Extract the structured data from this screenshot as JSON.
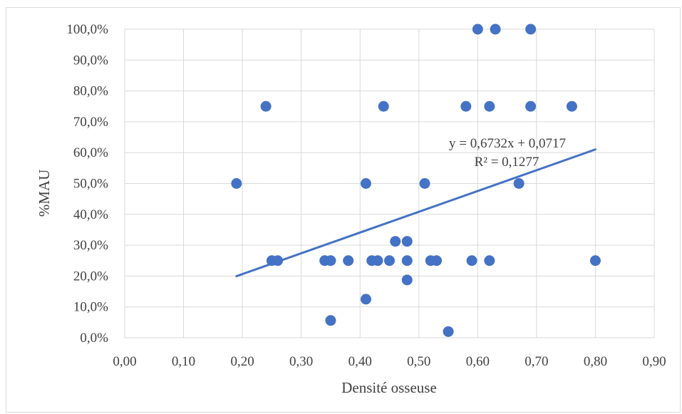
{
  "chart_data": {
    "type": "scatter",
    "title": "",
    "xlabel": "Densité osseuse",
    "ylabel": "%MAU",
    "xlim": [
      0,
      0.9
    ],
    "ylim": [
      0,
      1
    ],
    "grid": true,
    "legend": "none",
    "x_ticks": [
      "0,00",
      "0,10",
      "0,20",
      "0,30",
      "0,40",
      "0,50",
      "0,60",
      "0,70",
      "0,80",
      "0,90"
    ],
    "y_ticks": [
      "0,0%",
      "10,0%",
      "20,0%",
      "30,0%",
      "40,0%",
      "50,0%",
      "60,0%",
      "70,0%",
      "80,0%",
      "90,0%",
      "100,0%"
    ],
    "marker_color": "#4472c4",
    "trendline_color": "#4472c4",
    "points": [
      {
        "x": 0.6,
        "y": 1.0
      },
      {
        "x": 0.63,
        "y": 1.0
      },
      {
        "x": 0.69,
        "y": 1.0
      },
      {
        "x": 0.24,
        "y": 0.75
      },
      {
        "x": 0.44,
        "y": 0.75
      },
      {
        "x": 0.58,
        "y": 0.75
      },
      {
        "x": 0.62,
        "y": 0.75
      },
      {
        "x": 0.69,
        "y": 0.75
      },
      {
        "x": 0.76,
        "y": 0.75
      },
      {
        "x": 0.19,
        "y": 0.5
      },
      {
        "x": 0.41,
        "y": 0.5
      },
      {
        "x": 0.51,
        "y": 0.5
      },
      {
        "x": 0.67,
        "y": 0.5
      },
      {
        "x": 0.46,
        "y": 0.3125
      },
      {
        "x": 0.48,
        "y": 0.3125
      },
      {
        "x": 0.25,
        "y": 0.25
      },
      {
        "x": 0.26,
        "y": 0.25
      },
      {
        "x": 0.34,
        "y": 0.25
      },
      {
        "x": 0.35,
        "y": 0.25
      },
      {
        "x": 0.38,
        "y": 0.25
      },
      {
        "x": 0.42,
        "y": 0.25
      },
      {
        "x": 0.43,
        "y": 0.25
      },
      {
        "x": 0.45,
        "y": 0.25
      },
      {
        "x": 0.48,
        "y": 0.25
      },
      {
        "x": 0.52,
        "y": 0.25
      },
      {
        "x": 0.53,
        "y": 0.25
      },
      {
        "x": 0.59,
        "y": 0.25
      },
      {
        "x": 0.62,
        "y": 0.25
      },
      {
        "x": 0.8,
        "y": 0.25
      },
      {
        "x": 0.48,
        "y": 0.1875
      },
      {
        "x": 0.41,
        "y": 0.125
      },
      {
        "x": 0.35,
        "y": 0.056
      },
      {
        "x": 0.55,
        "y": 0.02
      }
    ],
    "trendline": {
      "slope": 0.6732,
      "intercept": 0.0717,
      "x_start": 0.19,
      "x_end": 0.8
    },
    "equation_text": "y = 0,6732x + 0,0717",
    "r2_text": "R² = 0,1277"
  }
}
